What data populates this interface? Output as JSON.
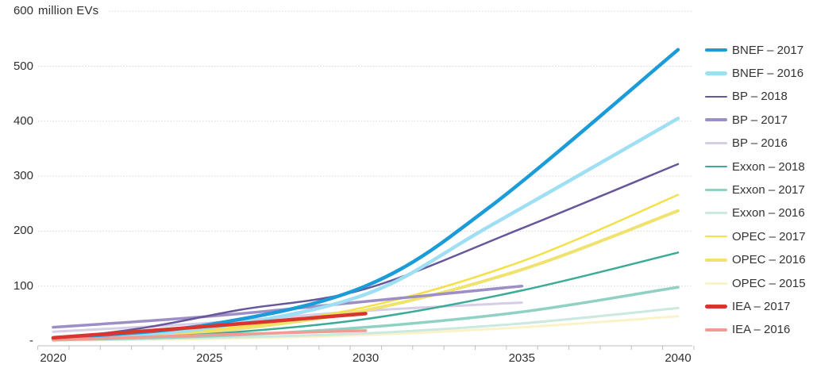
{
  "chart_data": {
    "type": "line",
    "title": "",
    "unit_label": "million EVs",
    "legend_position": "right",
    "grid": "horizontal-dotted",
    "text_color": "#2f2f2f",
    "grid_color": "#d6d6d6",
    "axis_color": "#bdbdbd",
    "x_axis": {
      "min": 2020,
      "max": 2040,
      "tick_step_years": 1,
      "label_years": [
        2020,
        2025,
        2030,
        2035,
        2040
      ],
      "tick_labels": [
        "2020",
        "2025",
        "2030",
        "2035",
        "2040"
      ]
    },
    "y_axis": {
      "min": 0,
      "max": 600,
      "tick_values": [
        600,
        500,
        400,
        300,
        200,
        100,
        0
      ],
      "tick_labels": [
        "600",
        "500",
        "400",
        "300",
        "200",
        "100",
        "-"
      ]
    },
    "series": [
      {
        "name": "BNEF – 2017",
        "color": "#1b9cd8",
        "line_width": 4.5,
        "x": [
          2020,
          2025,
          2030,
          2034,
          2040
        ],
        "y": [
          5,
          30,
          100,
          245,
          530
        ]
      },
      {
        "name": "BNEF – 2016",
        "color": "#9edff4",
        "line_width": 4.5,
        "x": [
          2020,
          2025,
          2030,
          2034,
          2040
        ],
        "y": [
          4,
          24,
          85,
          210,
          405
        ]
      },
      {
        "name": "BP – 2018",
        "color": "#66569a",
        "line_width": 2.5,
        "x": [
          2020,
          2023,
          2026,
          2030,
          2035,
          2040
        ],
        "y": [
          3,
          25,
          57,
          95,
          205,
          322
        ]
      },
      {
        "name": "BP – 2017",
        "color": "#9d8ec6",
        "line_width": 3.5,
        "x": [
          2020,
          2025,
          2030,
          2035
        ],
        "y": [
          25,
          45,
          72,
          100
        ]
      },
      {
        "name": "BP – 2016",
        "color": "#d5cee6",
        "line_width": 3.0,
        "x": [
          2020,
          2025,
          2030,
          2035
        ],
        "y": [
          17,
          33,
          55,
          70
        ]
      },
      {
        "name": "Exxon – 2018",
        "color": "#3bab97",
        "line_width": 2.5,
        "x": [
          2020,
          2025,
          2030,
          2035,
          2040
        ],
        "y": [
          2,
          13,
          40,
          92,
          161
        ]
      },
      {
        "name": "Exxon – 2017",
        "color": "#8fd1c2",
        "line_width": 3.5,
        "x": [
          2020,
          2025,
          2030,
          2035,
          2040
        ],
        "y": [
          2,
          9,
          25,
          53,
          98
        ]
      },
      {
        "name": "Exxon – 2016",
        "color": "#cbe8e1",
        "line_width": 3.0,
        "x": [
          2020,
          2025,
          2030,
          2035,
          2040
        ],
        "y": [
          1,
          6,
          14,
          32,
          60
        ]
      },
      {
        "name": "OPEC – 2017",
        "color": "#f4e04a",
        "line_width": 2.5,
        "x": [
          2020,
          2025,
          2030,
          2035,
          2040
        ],
        "y": [
          3,
          20,
          62,
          145,
          266
        ]
      },
      {
        "name": "OPEC – 2016",
        "color": "#f0e26e",
        "line_width": 4.0,
        "x": [
          2020,
          2025,
          2030,
          2035,
          2040
        ],
        "y": [
          2,
          17,
          56,
          130,
          237
        ]
      },
      {
        "name": "OPEC – 2015",
        "color": "#faf3c8",
        "line_width": 3.0,
        "x": [
          2020,
          2025,
          2030,
          2035,
          2040
        ],
        "y": [
          1,
          4,
          11,
          25,
          45
        ]
      },
      {
        "name": "IEA – 2017",
        "color": "#d8352e",
        "line_width": 4.5,
        "x": [
          2020,
          2025,
          2030
        ],
        "y": [
          6,
          27,
          50
        ]
      },
      {
        "name": "IEA – 2016",
        "color": "#f29b94",
        "line_width": 3.5,
        "x": [
          2020,
          2025,
          2030
        ],
        "y": [
          2,
          11,
          19
        ]
      }
    ],
    "draw_order": [
      10,
      7,
      4,
      6,
      9,
      8,
      5,
      3,
      2,
      1,
      0,
      12,
      11
    ],
    "legend": {
      "entries": [
        "BNEF – 2017",
        "BNEF – 2016",
        "BP – 2018",
        "BP – 2017",
        "BP – 2016",
        "Exxon – 2018",
        "Exxon – 2017",
        "Exxon – 2016",
        "OPEC – 2017",
        "OPEC – 2016",
        "OPEC – 2015",
        "IEA – 2017",
        "IEA – 2016"
      ]
    }
  }
}
